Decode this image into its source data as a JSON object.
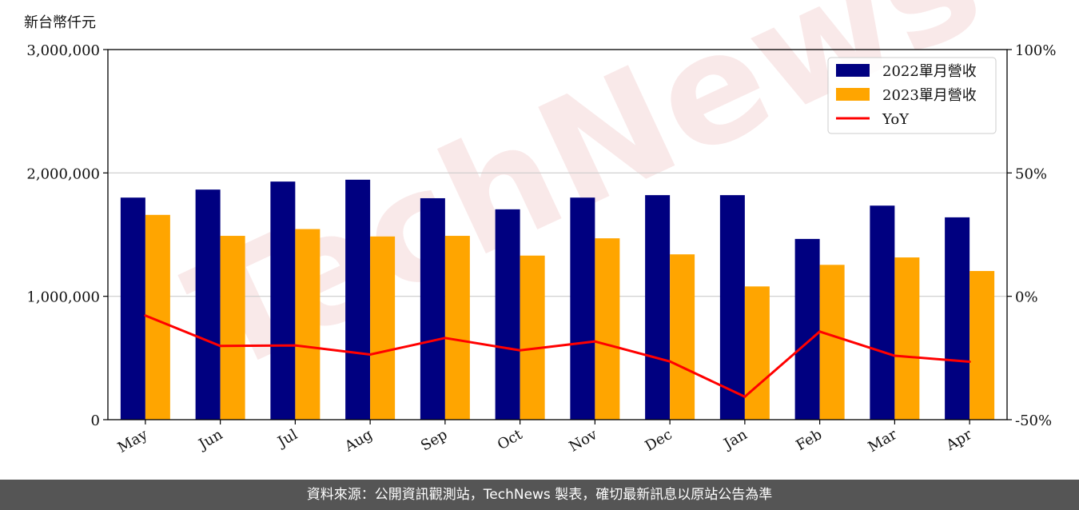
{
  "unit_label": "新台幣仟元",
  "footer_text": "資料來源：公開資訊觀測站，TechNews 製表，確切最新訊息以原站公告為準",
  "watermark": "TechNews",
  "colors": {
    "series_2022": "#000080",
    "series_2023": "#FFA500",
    "yoy": "#FF0000"
  },
  "chart_data": {
    "type": "bar",
    "categories": [
      "May",
      "Jun",
      "Jul",
      "Aug",
      "Sep",
      "Oct",
      "Nov",
      "Dec",
      "Jan",
      "Feb",
      "Mar",
      "Apr"
    ],
    "series": [
      {
        "name": "2022單月營收",
        "values": [
          1800000,
          1865000,
          1930000,
          1945000,
          1795000,
          1705000,
          1800000,
          1820000,
          1820000,
          1465000,
          1735000,
          1640000
        ]
      },
      {
        "name": "2023單月營收",
        "values": [
          1660000,
          1490000,
          1545000,
          1485000,
          1490000,
          1330000,
          1470000,
          1340000,
          1080000,
          1255000,
          1315000,
          1205000
        ]
      }
    ],
    "line_series": {
      "name": "YoY",
      "axis": "right",
      "values": [
        -7.8,
        -20.1,
        -19.9,
        -23.6,
        -16.9,
        -21.9,
        -18.3,
        -26.4,
        -40.7,
        -14.3,
        -24.1,
        -26.5
      ]
    },
    "ylim": [
      0,
      3000000
    ],
    "yticks": [
      "0",
      "1,000,000",
      "2,000,000",
      "3,000,000"
    ],
    "ylim_right": [
      -50,
      100
    ],
    "yticks_right": [
      "-50%",
      "0%",
      "50%",
      "100%"
    ],
    "grid": true,
    "legend_position": "top-right",
    "xlabel": "",
    "ylabel": ""
  }
}
